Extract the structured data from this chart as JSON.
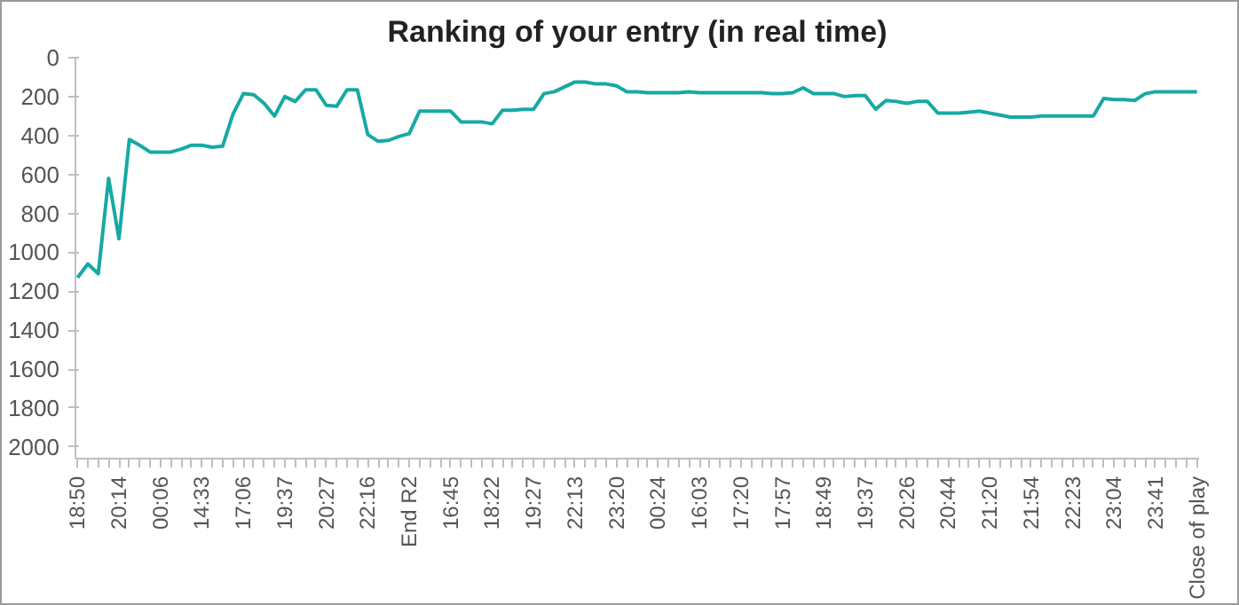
{
  "chart_data": {
    "type": "line",
    "title": "Ranking of your entry (in real time)",
    "categories": [
      "18:50",
      null,
      null,
      null,
      "20:14",
      null,
      null,
      null,
      "00:06",
      null,
      null,
      null,
      "14:33",
      null,
      null,
      null,
      "17:06",
      null,
      null,
      null,
      "19:37",
      null,
      null,
      null,
      "20:27",
      null,
      null,
      null,
      "22:16",
      null,
      null,
      null,
      "End R2",
      null,
      null,
      null,
      "16:45",
      null,
      null,
      null,
      "18:22",
      null,
      null,
      null,
      "19:27",
      null,
      null,
      null,
      "22:13",
      null,
      null,
      null,
      "23:20",
      null,
      null,
      null,
      "00:24",
      null,
      null,
      null,
      "16:03",
      null,
      null,
      null,
      "17:20",
      null,
      null,
      null,
      "17:57",
      null,
      null,
      null,
      "18:49",
      null,
      null,
      null,
      "19:37",
      null,
      null,
      null,
      "20:26",
      null,
      null,
      null,
      "20:44",
      null,
      null,
      null,
      "21:20",
      null,
      null,
      null,
      "21:54",
      null,
      null,
      null,
      "22:23",
      null,
      null,
      null,
      "23:04",
      null,
      null,
      null,
      "23:41",
      null,
      null,
      null,
      "Close of play"
    ],
    "series": [
      {
        "color": "#17a9a4",
        "values": [
          1130,
          1060,
          1110,
          620,
          930,
          420,
          450,
          485,
          485,
          485,
          470,
          450,
          450,
          460,
          455,
          290,
          185,
          190,
          235,
          300,
          200,
          225,
          165,
          165,
          245,
          250,
          165,
          165,
          395,
          430,
          425,
          405,
          390,
          275,
          275,
          275,
          275,
          330,
          330,
          330,
          340,
          270,
          270,
          265,
          265,
          185,
          175,
          150,
          125,
          125,
          135,
          135,
          145,
          175,
          175,
          180,
          180,
          180,
          180,
          175,
          180,
          180,
          180,
          180,
          180,
          180,
          180,
          185,
          185,
          180,
          155,
          185,
          185,
          185,
          200,
          195,
          195,
          265,
          220,
          225,
          235,
          225,
          225,
          285,
          285,
          285,
          280,
          275,
          285,
          295,
          305,
          305,
          305,
          300,
          300,
          300,
          300,
          300,
          300,
          210,
          215,
          215,
          220,
          185,
          175,
          175,
          175,
          175,
          175
        ]
      }
    ],
    "ylim": [
      2060,
      0
    ],
    "yticks": [
      0,
      200,
      400,
      600,
      800,
      1000,
      1200,
      1400,
      1600,
      1800,
      2000
    ],
    "grid": false,
    "marker": "none",
    "line_style": "solid"
  }
}
